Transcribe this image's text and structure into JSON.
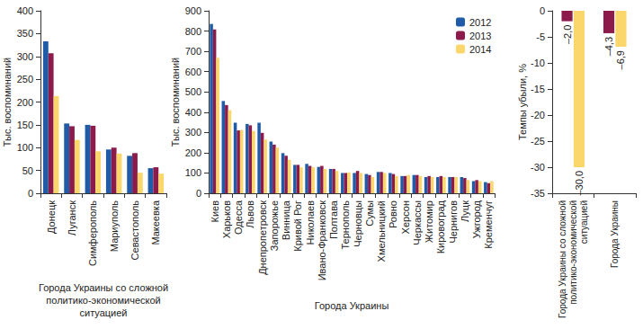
{
  "chart_data": [
    {
      "type": "bar",
      "ylabel": "Тыс. воспоминаний",
      "xlabel": "Города Украины со сложной\nполитико-экономической\nситуацией",
      "categories": [
        "Донецк",
        "Луганск",
        "Симферополь",
        "Мариуполь",
        "Севастополь",
        "Макеевка"
      ],
      "series": [
        {
          "name": "2012",
          "color": "#1f5ba6",
          "values": [
            333,
            153,
            150,
            96,
            82,
            55
          ]
        },
        {
          "name": "2013",
          "color": "#8c1a4b",
          "values": [
            307,
            147,
            148,
            100,
            88,
            57
          ]
        },
        {
          "name": "2014",
          "color": "#fbd66a",
          "values": [
            213,
            117,
            92,
            87,
            45,
            43
          ]
        }
      ],
      "ylim": [
        0,
        400
      ],
      "yticks": [
        0,
        50,
        100,
        150,
        200,
        250,
        300,
        350,
        400
      ],
      "grid": false
    },
    {
      "type": "bar",
      "ylabel": "Тыс. воспоминаний",
      "xlabel": "Города Украины",
      "categories": [
        "Киев",
        "Харьков",
        "Одесса",
        "Львов",
        "Днепропетровск",
        "Запорожье",
        "Винница",
        "Кривой Рог",
        "Николаев",
        "Ивано-Франковск",
        "Полтава",
        "Тернополь",
        "Черновцы",
        "Сумы",
        "Хмельницкий",
        "Ровно",
        "Херсон",
        "Черкассы",
        "Житомир",
        "Кировоград",
        "Чернигов",
        "Луцк",
        "Ужгород",
        "Кременчуг"
      ],
      "series": [
        {
          "name": "2012",
          "color": "#1f5ba6",
          "values": [
            835,
            455,
            348,
            342,
            348,
            255,
            198,
            140,
            145,
            130,
            120,
            100,
            100,
            95,
            105,
            100,
            85,
            90,
            80,
            80,
            80,
            80,
            60,
            55
          ]
        },
        {
          "name": "2013",
          "color": "#8c1a4b",
          "values": [
            808,
            435,
            310,
            335,
            298,
            240,
            185,
            140,
            135,
            135,
            120,
            100,
            110,
            90,
            105,
            95,
            85,
            90,
            85,
            85,
            80,
            75,
            65,
            50
          ]
        },
        {
          "name": "2014",
          "color": "#fbd66a",
          "values": [
            668,
            410,
            312,
            307,
            265,
            225,
            165,
            128,
            128,
            120,
            110,
            103,
            100,
            80,
            100,
            85,
            90,
            85,
            80,
            80,
            80,
            65,
            60,
            60
          ]
        }
      ],
      "ylim": [
        0,
        900
      ],
      "yticks": [
        0,
        100,
        200,
        300,
        400,
        500,
        600,
        700,
        800,
        900
      ],
      "grid": false,
      "legend": "top-right"
    },
    {
      "type": "bar",
      "ylabel": "Темпы убыли, %",
      "categories": [
        "Города Украины со сложной\nполитико-экономической\nситуацией",
        "Города Украины"
      ],
      "series": [
        {
          "name": "2013",
          "color": "#8c1a4b",
          "values": [
            -2.0,
            -4.3
          ],
          "value_labels": [
            "–2,0",
            "–4,3"
          ]
        },
        {
          "name": "2014",
          "color": "#fbd66a",
          "values": [
            -30.0,
            -6.9
          ],
          "value_labels": [
            "–30,0",
            "–6,9"
          ]
        }
      ],
      "ylim": [
        -35,
        0
      ],
      "yticks": [
        -35,
        -30,
        -25,
        -20,
        -15,
        -10,
        -5,
        0
      ],
      "grid": false,
      "data_labels": true
    }
  ]
}
